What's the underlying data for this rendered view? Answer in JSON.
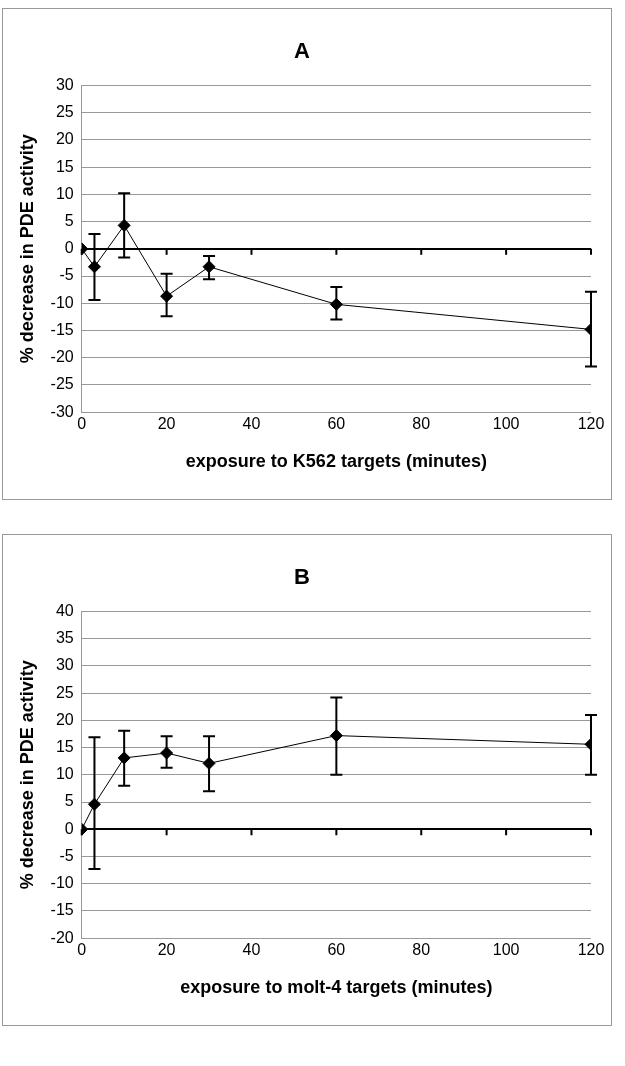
{
  "chart_data": [
    {
      "type": "line",
      "title": "A",
      "xlabel": "exposure to K562 targets (minutes)",
      "ylabel": "% decrease in PDE activity",
      "x": [
        0,
        3,
        10,
        20,
        30,
        60,
        120
      ],
      "series": [
        {
          "color": "#000000",
          "values": [
            0,
            -3.3,
            4.3,
            -8.7,
            -3.3,
            -10.2,
            -14.8
          ],
          "errors": [
            null,
            [
              -9.4,
              2.7
            ],
            [
              -1.6,
              10.2
            ],
            [
              -12.4,
              -4.6
            ],
            [
              -5.6,
              -1.3
            ],
            [
              -13,
              -7
            ],
            [
              -21.6,
              -7.9
            ]
          ]
        }
      ],
      "xlim": [
        0,
        120
      ],
      "xticks": [
        0,
        20,
        40,
        60,
        80,
        100,
        120
      ],
      "ylim": [
        -30,
        30
      ],
      "yticks": [
        -30,
        -25,
        -20,
        -15,
        -10,
        -5,
        0,
        5,
        10,
        15,
        20,
        25,
        30
      ],
      "grid": "y",
      "legend": false,
      "marker": "diamond",
      "line_style": "solid"
    },
    {
      "type": "line",
      "title": "B",
      "xlabel": "exposure to molt-4 targets (minutes)",
      "ylabel": "% decrease in PDE activity",
      "x": [
        0,
        3,
        10,
        20,
        30,
        60,
        120
      ],
      "series": [
        {
          "color": "#000000",
          "values": [
            0,
            4.6,
            13.1,
            14,
            12.1,
            17.2,
            15.6
          ],
          "errors": [
            null,
            [
              -7.3,
              16.9
            ],
            [
              8,
              18.1
            ],
            [
              11.3,
              17.1
            ],
            [
              7,
              17.1
            ],
            [
              10,
              24.2
            ],
            [
              10,
              21
            ]
          ]
        }
      ],
      "xlim": [
        0,
        120
      ],
      "xticks": [
        0,
        20,
        40,
        60,
        80,
        100,
        120
      ],
      "ylim": [
        -20,
        40
      ],
      "yticks": [
        -20,
        -15,
        -10,
        -5,
        0,
        5,
        10,
        15,
        20,
        25,
        30,
        35,
        40
      ],
      "grid": "y",
      "legend": false,
      "marker": "diamond",
      "line_style": "solid"
    }
  ]
}
